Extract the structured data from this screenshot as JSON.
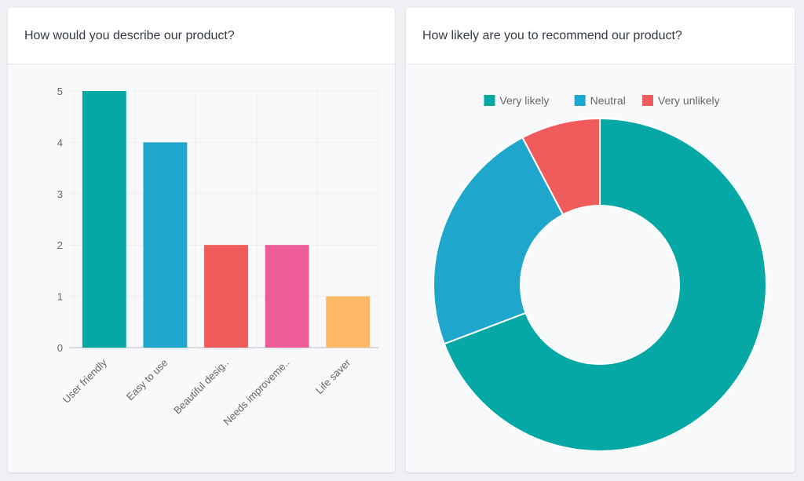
{
  "cards": [
    {
      "title": "How would you describe our product?"
    },
    {
      "title": "How likely are you to recommend our product?"
    }
  ],
  "chart_data": [
    {
      "type": "bar",
      "categories": [
        "User friendly",
        "Easy to use",
        "Beautiful desig..",
        "Needs improveme..",
        "Life saver"
      ],
      "values": [
        5,
        4,
        2,
        2,
        1
      ],
      "colors": [
        "#05a8a5",
        "#1ea6cc",
        "#f05c5c",
        "#ec5c96",
        "#fdb968"
      ],
      "ylim": [
        0,
        5
      ],
      "yticks": [
        "0",
        "1",
        "2",
        "3",
        "4",
        "5"
      ],
      "grid": true,
      "legend": false
    },
    {
      "type": "pie",
      "donut": true,
      "categories": [
        "Very likely",
        "Neutral",
        "Very unlikely"
      ],
      "values": [
        9,
        3,
        1
      ],
      "colors": [
        "#05a8a5",
        "#1ea6cc",
        "#f05c5c"
      ],
      "legend": "top"
    }
  ]
}
